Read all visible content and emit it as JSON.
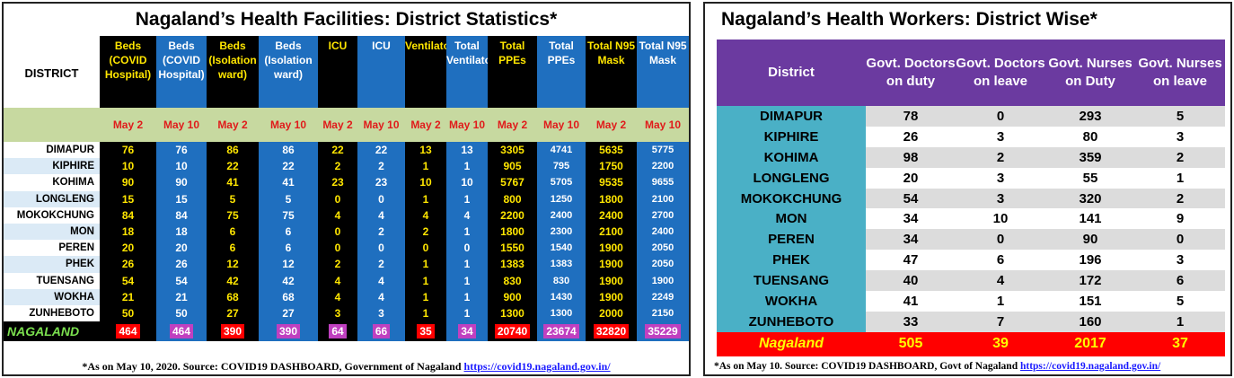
{
  "left": {
    "title": "Nagaland’s Health Facilities: District Statistics*",
    "district_header": "DISTRICT",
    "headers": [
      "Beds (COVID Hospital)",
      "Beds (COVID Hospital)",
      "Beds (Isolation ward)",
      "Beds (Isolation ward)",
      "ICU",
      "ICU",
      "Ventilators",
      "Total Ventilators",
      "Total PPEs",
      "Total PPEs",
      "Total N95 Mask",
      "Total N95 Mask"
    ],
    "dates": [
      "May 2",
      "May 10",
      "May 2",
      "May 10",
      "May 2",
      "May 10",
      "May 2",
      "May 10",
      "May 2",
      "May 10",
      "May 2",
      "May 10"
    ],
    "rows": [
      {
        "district": "DIMAPUR",
        "values": [
          "76",
          "76",
          "86",
          "86",
          "22",
          "22",
          "13",
          "13",
          "3305",
          "4741",
          "5635",
          "5775"
        ]
      },
      {
        "district": "KIPHIRE",
        "values": [
          "10",
          "10",
          "22",
          "22",
          "2",
          "2",
          "1",
          "1",
          "905",
          "795",
          "1750",
          "2200"
        ]
      },
      {
        "district": "KOHIMA",
        "values": [
          "90",
          "90",
          "41",
          "41",
          "23",
          "23",
          "10",
          "10",
          "5767",
          "5705",
          "9535",
          "9655"
        ]
      },
      {
        "district": "LONGLENG",
        "values": [
          "15",
          "15",
          "5",
          "5",
          "0",
          "0",
          "1",
          "1",
          "800",
          "1250",
          "1800",
          "2100"
        ]
      },
      {
        "district": "MOKOKCHUNG",
        "values": [
          "84",
          "84",
          "75",
          "75",
          "4",
          "4",
          "4",
          "4",
          "2200",
          "2400",
          "2400",
          "2700"
        ]
      },
      {
        "district": "MON",
        "values": [
          "18",
          "18",
          "6",
          "6",
          "0",
          "2",
          "2",
          "1",
          "1800",
          "2300",
          "2100",
          "2400"
        ]
      },
      {
        "district": "PEREN",
        "values": [
          "20",
          "20",
          "6",
          "6",
          "0",
          "0",
          "0",
          "0",
          "1550",
          "1540",
          "1900",
          "2050"
        ]
      },
      {
        "district": "PHEK",
        "values": [
          "26",
          "26",
          "12",
          "12",
          "2",
          "2",
          "1",
          "1",
          "1383",
          "1383",
          "1900",
          "2050"
        ]
      },
      {
        "district": "TUENSANG",
        "values": [
          "54",
          "54",
          "42",
          "42",
          "4",
          "4",
          "1",
          "1",
          "830",
          "830",
          "1900",
          "1900"
        ]
      },
      {
        "district": "WOKHA",
        "values": [
          "21",
          "21",
          "68",
          "68",
          "4",
          "4",
          "1",
          "1",
          "900",
          "1430",
          "1900",
          "2249"
        ]
      },
      {
        "district": "ZUNHEBOTO",
        "values": [
          "50",
          "50",
          "27",
          "27",
          "3",
          "3",
          "1",
          "1",
          "1300",
          "1300",
          "2000",
          "2150"
        ]
      }
    ],
    "total": {
      "label": "NAGALAND",
      "values": [
        "464",
        "464",
        "390",
        "390",
        "64",
        "66",
        "35",
        "34",
        "20740",
        "23674",
        "32820",
        "35229"
      ],
      "badge_colors": [
        "#ff0000",
        "#c040c0",
        "#ff0000",
        "#c040c0",
        "#c040c0",
        "#c040c0",
        "#ff0000",
        "#c040c0",
        "#ff0000",
        "#c040c0",
        "#ff0000",
        "#c040c0"
      ]
    },
    "footnote": "*As on May 10, 2020.  Source: COVID19 DASHBOARD, Government of Nagaland",
    "footnote_link": "https://covid19.nagaland.gov.in/"
  },
  "right": {
    "title": "Nagaland’s Health Workers: District Wise*",
    "headers": [
      "District",
      "Govt. Doctors on duty",
      "Govt. Doctors on leave",
      "Govt. Nurses on Duty",
      "Govt. Nurses on leave"
    ],
    "rows": [
      {
        "district": "DIMAPUR",
        "values": [
          "78",
          "0",
          "293",
          "5"
        ]
      },
      {
        "district": "KIPHIRE",
        "values": [
          "26",
          "3",
          "80",
          "3"
        ]
      },
      {
        "district": "KOHIMA",
        "values": [
          "98",
          "2",
          "359",
          "2"
        ]
      },
      {
        "district": "LONGLENG",
        "values": [
          "20",
          "3",
          "55",
          "1"
        ]
      },
      {
        "district": "MOKOKCHUNG",
        "values": [
          "54",
          "3",
          "320",
          "2"
        ]
      },
      {
        "district": "MON",
        "values": [
          "34",
          "10",
          "141",
          "9"
        ]
      },
      {
        "district": "PEREN",
        "values": [
          "34",
          "0",
          "90",
          "0"
        ]
      },
      {
        "district": "PHEK",
        "values": [
          "47",
          "6",
          "196",
          "3"
        ]
      },
      {
        "district": "TUENSANG",
        "values": [
          "40",
          "4",
          "172",
          "6"
        ]
      },
      {
        "district": "WOKHA",
        "values": [
          "41",
          "1",
          "151",
          "5"
        ]
      },
      {
        "district": "ZUNHEBOTO",
        "values": [
          "33",
          "7",
          "160",
          "1"
        ]
      }
    ],
    "total": {
      "label": "Nagaland",
      "values": [
        "505",
        "39",
        "2017",
        "37"
      ]
    },
    "footnote": "*As on May 10.  Source: COVID19 DASHBOARD, Govt of Nagaland",
    "footnote_link": "https://covid19.nagaland.gov.in/"
  }
}
